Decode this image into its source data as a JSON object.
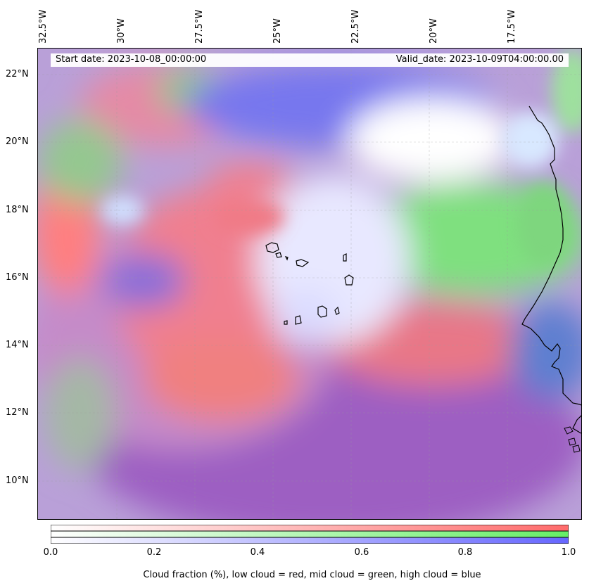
{
  "map": {
    "lon_labels": [
      "32.5°W",
      "30°W",
      "27.5°W",
      "25°W",
      "22.5°W",
      "20°W",
      "17.5°W"
    ],
    "lat_labels": [
      "22°N",
      "20°N",
      "18°N",
      "16°N",
      "14°N",
      "12°N",
      "10°N"
    ],
    "start_date": "Start date: 2023-10-08_00:00:00",
    "valid_date": "Valid_date: 2023-10-09T04:00:00.00",
    "layers": [
      {
        "name": "low cloud",
        "color": "#ff6b6b"
      },
      {
        "name": "mid cloud",
        "color": "#66dd66"
      },
      {
        "name": "high cloud",
        "color": "#6b6bff"
      }
    ]
  },
  "colorbar": {
    "ticks": [
      "0.0",
      "0.2",
      "0.4",
      "0.6",
      "0.8",
      "1.0"
    ],
    "label": "Cloud fraction (%), low cloud = red, mid cloud = green, high cloud = blue",
    "range": [
      0.0,
      1.0
    ]
  }
}
